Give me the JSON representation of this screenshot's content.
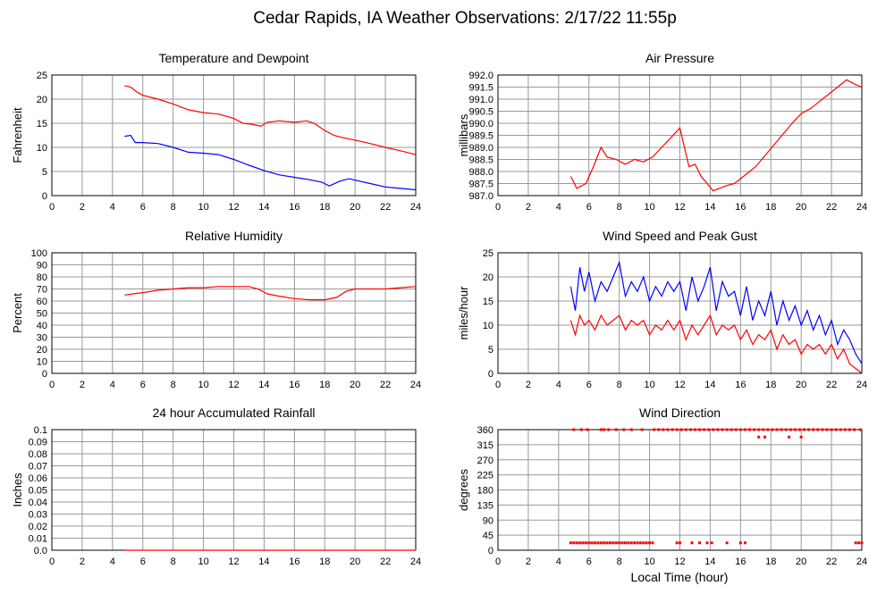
{
  "title": "Cedar Rapids, IA Weather Observations: 2/17/22 11:55p",
  "xlabel": "Local Time (hour)",
  "colors": {
    "primary": "#ff0000",
    "secondary": "#0000ff",
    "grid": "#999999"
  },
  "chart_data": [
    {
      "id": "temp",
      "type": "line",
      "title": "Temperature and Dewpoint",
      "ylabel": "Fahrenheit",
      "xlim": [
        0,
        24
      ],
      "ylim": [
        0,
        25
      ],
      "xticks": [
        "0",
        "2",
        "4",
        "6",
        "8",
        "10",
        "12",
        "14",
        "16",
        "18",
        "20",
        "22",
        "24"
      ],
      "yticks": [
        "0",
        "5",
        "10",
        "15",
        "20",
        "25"
      ],
      "grid": true,
      "series": [
        {
          "color": "#ff0000",
          "x": [
            4.8,
            5.2,
            5.6,
            6.0,
            7.0,
            8.0,
            9.0,
            10.0,
            11.0,
            12.0,
            12.6,
            13.2,
            13.8,
            14.2,
            15.0,
            16.0,
            16.8,
            17.3,
            18.0,
            18.6,
            19.2,
            20.0,
            21.0,
            22.0,
            23.0,
            24.0
          ],
          "y": [
            22.8,
            22.5,
            21.5,
            20.8,
            20.0,
            19.0,
            17.8,
            17.2,
            16.9,
            16.0,
            15.0,
            14.8,
            14.4,
            15.2,
            15.5,
            15.2,
            15.5,
            15.0,
            13.5,
            12.5,
            12.0,
            11.5,
            10.8,
            10.0,
            9.3,
            8.5
          ]
        },
        {
          "color": "#0000ff",
          "x": [
            4.8,
            5.2,
            5.5,
            6.0,
            7.0,
            8.0,
            9.0,
            10.0,
            11.0,
            12.0,
            13.0,
            14.0,
            15.0,
            16.0,
            17.0,
            17.8,
            18.3,
            19.0,
            19.6,
            20.0,
            21.0,
            22.0,
            23.0,
            24.0
          ],
          "y": [
            12.3,
            12.5,
            11.0,
            11.0,
            10.8,
            10.0,
            9.0,
            8.8,
            8.5,
            7.5,
            6.3,
            5.2,
            4.3,
            3.8,
            3.3,
            2.8,
            2.0,
            3.0,
            3.5,
            3.2,
            2.5,
            1.8,
            1.5,
            1.2
          ]
        }
      ]
    },
    {
      "id": "pressure",
      "type": "line",
      "title": "Air Pressure",
      "ylabel": "millibars",
      "xlim": [
        0,
        24
      ],
      "ylim": [
        987.0,
        992.0
      ],
      "xticks": [
        "0",
        "2",
        "4",
        "6",
        "8",
        "10",
        "12",
        "14",
        "16",
        "18",
        "20",
        "22",
        "24"
      ],
      "yticks": [
        "987.0",
        "987.5",
        "988.0",
        "988.5",
        "989.0",
        "989.5",
        "990.0",
        "990.5",
        "991.0",
        "991.5",
        "992.0"
      ],
      "grid": true,
      "series": [
        {
          "color": "#ff0000",
          "x": [
            4.8,
            5.2,
            5.8,
            6.3,
            6.8,
            7.2,
            7.8,
            8.4,
            9.0,
            9.6,
            10.2,
            10.8,
            11.4,
            12.0,
            12.3,
            12.6,
            13.0,
            13.4,
            13.8,
            14.2,
            14.6,
            15.0,
            15.6,
            16.2,
            17.0,
            17.8,
            18.6,
            19.4,
            20.0,
            20.6,
            21.2,
            21.8,
            22.4,
            23.0,
            23.6,
            24.0
          ],
          "y": [
            987.8,
            987.3,
            987.5,
            988.2,
            989.0,
            988.6,
            988.5,
            988.3,
            988.5,
            988.4,
            988.6,
            989.0,
            989.4,
            989.8,
            989.0,
            988.2,
            988.3,
            987.8,
            987.5,
            987.2,
            987.3,
            987.4,
            987.5,
            987.8,
            988.2,
            988.8,
            989.4,
            990.0,
            990.4,
            990.6,
            990.9,
            991.2,
            991.5,
            991.8,
            991.6,
            991.5
          ]
        }
      ]
    },
    {
      "id": "humidity",
      "type": "line",
      "title": "Relative Humidity",
      "ylabel": "Percent",
      "xlim": [
        0,
        24
      ],
      "ylim": [
        0,
        100
      ],
      "xticks": [
        "0",
        "2",
        "4",
        "6",
        "8",
        "10",
        "12",
        "14",
        "16",
        "18",
        "20",
        "22",
        "24"
      ],
      "yticks": [
        "0",
        "10",
        "20",
        "30",
        "40",
        "50",
        "60",
        "70",
        "80",
        "90",
        "100"
      ],
      "grid": true,
      "series": [
        {
          "color": "#ff0000",
          "x": [
            4.8,
            5.4,
            6.0,
            7.0,
            8.0,
            9.0,
            10.0,
            11.0,
            12.0,
            13.0,
            13.6,
            14.2,
            15.0,
            16.0,
            17.0,
            18.0,
            18.8,
            19.4,
            20.0,
            21.0,
            22.0,
            23.0,
            24.0
          ],
          "y": [
            65,
            66,
            67,
            69,
            70,
            71,
            71,
            72,
            72,
            72,
            70,
            66,
            64,
            62,
            61,
            61,
            63,
            68,
            70,
            70,
            70,
            71,
            72
          ]
        }
      ]
    },
    {
      "id": "wind",
      "type": "line",
      "title": "Wind Speed and Peak Gust",
      "ylabel": "miles/hour",
      "xlim": [
        0,
        24
      ],
      "ylim": [
        0,
        25
      ],
      "xticks": [
        "0",
        "2",
        "4",
        "6",
        "8",
        "10",
        "12",
        "14",
        "16",
        "18",
        "20",
        "22",
        "24"
      ],
      "yticks": [
        "0",
        "5",
        "10",
        "15",
        "20",
        "25"
      ],
      "grid": true,
      "series": [
        {
          "color": "#0000ff",
          "x": [
            4.8,
            5.1,
            5.4,
            5.7,
            6.0,
            6.4,
            6.8,
            7.2,
            7.6,
            8.0,
            8.4,
            8.8,
            9.2,
            9.6,
            10.0,
            10.4,
            10.8,
            11.2,
            11.6,
            12.0,
            12.4,
            12.8,
            13.2,
            13.6,
            14.0,
            14.4,
            14.8,
            15.2,
            15.6,
            16.0,
            16.4,
            16.8,
            17.2,
            17.6,
            18.0,
            18.4,
            18.8,
            19.2,
            19.6,
            20.0,
            20.4,
            20.8,
            21.2,
            21.6,
            22.0,
            22.4,
            22.8,
            23.2,
            23.6,
            24.0
          ],
          "y": [
            18,
            13,
            22,
            17,
            21,
            15,
            19,
            17,
            20,
            23,
            16,
            19,
            17,
            20,
            15,
            18,
            16,
            19,
            17,
            19,
            13,
            20,
            15,
            18,
            22,
            13,
            19,
            16,
            17,
            12,
            18,
            11,
            15,
            12,
            17,
            10,
            15,
            11,
            14,
            10,
            13,
            9,
            12,
            8,
            11,
            6,
            9,
            7,
            4,
            2
          ]
        },
        {
          "color": "#ff0000",
          "x": [
            4.8,
            5.1,
            5.4,
            5.7,
            6.0,
            6.4,
            6.8,
            7.2,
            7.6,
            8.0,
            8.4,
            8.8,
            9.2,
            9.6,
            10.0,
            10.4,
            10.8,
            11.2,
            11.6,
            12.0,
            12.4,
            12.8,
            13.2,
            13.6,
            14.0,
            14.4,
            14.8,
            15.2,
            15.6,
            16.0,
            16.4,
            16.8,
            17.2,
            17.6,
            18.0,
            18.4,
            18.8,
            19.2,
            19.6,
            20.0,
            20.4,
            20.8,
            21.2,
            21.6,
            22.0,
            22.4,
            22.8,
            23.2,
            23.6,
            24.0
          ],
          "y": [
            11,
            8,
            12,
            10,
            11,
            9,
            12,
            10,
            11,
            12,
            9,
            11,
            10,
            11,
            8,
            10,
            9,
            11,
            9,
            11,
            7,
            10,
            8,
            10,
            12,
            8,
            10,
            9,
            10,
            7,
            9,
            6,
            8,
            7,
            9,
            5,
            8,
            6,
            7,
            4,
            6,
            5,
            6,
            4,
            6,
            3,
            5,
            2,
            1,
            0
          ]
        }
      ]
    },
    {
      "id": "rain",
      "type": "line",
      "title": "24 hour Accumulated Rainfall",
      "ylabel": "Inches",
      "xlim": [
        0,
        24
      ],
      "ylim": [
        0,
        0.1
      ],
      "xticks": [
        "0",
        "2",
        "4",
        "6",
        "8",
        "10",
        "12",
        "14",
        "16",
        "18",
        "20",
        "22",
        "24"
      ],
      "yticks": [
        "0.0",
        "0.01",
        "0.02",
        "0.03",
        "0.04",
        "0.05",
        "0.06",
        "0.07",
        "0.08",
        "0.09",
        "0.1"
      ],
      "grid": true,
      "series": [
        {
          "color": "#ff0000",
          "x": [
            4.8,
            24.0
          ],
          "y": [
            0,
            0
          ]
        }
      ]
    },
    {
      "id": "direction",
      "type": "scatter",
      "title": "Wind Direction",
      "ylabel": "degrees",
      "xlim": [
        0,
        24
      ],
      "ylim": [
        0,
        360
      ],
      "xticks": [
        "0",
        "2",
        "4",
        "6",
        "8",
        "10",
        "12",
        "14",
        "16",
        "18",
        "20",
        "22",
        "24"
      ],
      "yticks": [
        "0",
        "45",
        "90",
        "135",
        "180",
        "225",
        "270",
        "315",
        "360"
      ],
      "grid": true,
      "series": [
        {
          "color": "#ff0000",
          "x": [
            5.0,
            5.5,
            5.9,
            6.8,
            7.0,
            7.3,
            7.8,
            8.3,
            8.8,
            9.5,
            10.3,
            10.6,
            10.9,
            11.2,
            11.5,
            11.8,
            12.1,
            12.4,
            12.7,
            13.0,
            13.3,
            13.6,
            13.9,
            14.2,
            14.5,
            14.8,
            15.1,
            15.4,
            15.7,
            16.0,
            16.3,
            16.6,
            16.9,
            17.2,
            17.5,
            17.8,
            18.1,
            18.4,
            18.7,
            19.0,
            19.3,
            19.6,
            19.9,
            20.2,
            20.5,
            20.8,
            21.1,
            21.4,
            21.7,
            22.0,
            22.3,
            22.6,
            22.9,
            23.2,
            23.5,
            23.9,
            17.2,
            17.6,
            19.2,
            20.0,
            4.8,
            5.0,
            5.2,
            5.4,
            5.6,
            5.8,
            6.0,
            6.2,
            6.4,
            6.6,
            6.8,
            7.0,
            7.2,
            7.4,
            7.6,
            7.8,
            8.0,
            8.2,
            8.4,
            8.6,
            8.8,
            9.0,
            9.2,
            9.4,
            9.6,
            9.8,
            10.0,
            10.2,
            11.8,
            12.0,
            12.8,
            13.3,
            13.8,
            14.1,
            15.1,
            16.0,
            16.3,
            23.6,
            23.8,
            24.0
          ],
          "y": [
            360,
            360,
            360,
            360,
            360,
            360,
            360,
            360,
            360,
            360,
            360,
            360,
            360,
            360,
            360,
            360,
            360,
            360,
            360,
            360,
            360,
            360,
            360,
            360,
            360,
            360,
            360,
            360,
            360,
            360,
            360,
            360,
            360,
            360,
            360,
            360,
            360,
            360,
            360,
            360,
            360,
            360,
            360,
            360,
            360,
            360,
            360,
            360,
            360,
            360,
            360,
            360,
            360,
            360,
            360,
            360,
            338,
            338,
            338,
            338,
            22,
            22,
            22,
            22,
            22,
            22,
            22,
            22,
            22,
            22,
            22,
            22,
            22,
            22,
            22,
            22,
            22,
            22,
            22,
            22,
            22,
            22,
            22,
            22,
            22,
            22,
            22,
            22,
            22,
            22,
            22,
            22,
            22,
            22,
            22,
            22,
            22,
            22,
            22,
            22
          ]
        }
      ]
    }
  ]
}
